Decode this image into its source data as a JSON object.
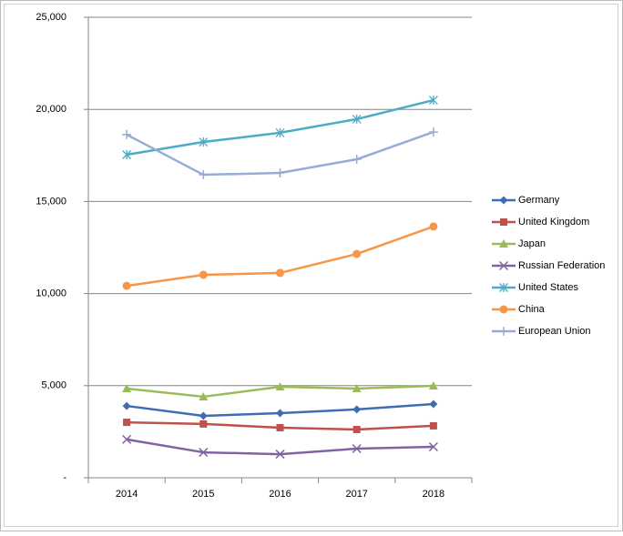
{
  "chart_data": {
    "type": "line",
    "categories": [
      "2014",
      "2015",
      "2016",
      "2017",
      "2018"
    ],
    "series": [
      {
        "name": "Germany",
        "color": "#3e6db3",
        "marker": "diamond",
        "values": [
          3900,
          3360,
          3510,
          3710,
          4000
        ]
      },
      {
        "name": "United Kingdom",
        "color": "#c0504d",
        "marker": "square",
        "values": [
          3010,
          2920,
          2720,
          2620,
          2820
        ]
      },
      {
        "name": "Japan",
        "color": "#9bbb59",
        "marker": "triangle",
        "values": [
          4840,
          4400,
          4940,
          4840,
          4990
        ]
      },
      {
        "name": "Russian Federation",
        "color": "#8064a2",
        "marker": "x",
        "values": [
          2080,
          1380,
          1280,
          1580,
          1680
        ]
      },
      {
        "name": "United States",
        "color": "#4bacc6",
        "marker": "star",
        "values": [
          17540,
          18230,
          18730,
          19470,
          20500
        ]
      },
      {
        "name": "China",
        "color": "#f79646",
        "marker": "circle",
        "values": [
          10420,
          11020,
          11120,
          12150,
          13640
        ]
      },
      {
        "name": "European Union",
        "color": "#95add6",
        "marker": "plus",
        "values": [
          18630,
          16450,
          16550,
          17290,
          18770
        ]
      }
    ],
    "ylim": [
      0,
      25000
    ],
    "yticks": [
      {
        "value": 0,
        "label": "-"
      },
      {
        "value": 5000,
        "label": "5,000"
      },
      {
        "value": 10000,
        "label": "10,000"
      },
      {
        "value": 15000,
        "label": "15,000"
      },
      {
        "value": 20000,
        "label": "20,000"
      },
      {
        "value": 25000,
        "label": "25,000"
      }
    ],
    "grid": true,
    "legend": "right"
  }
}
